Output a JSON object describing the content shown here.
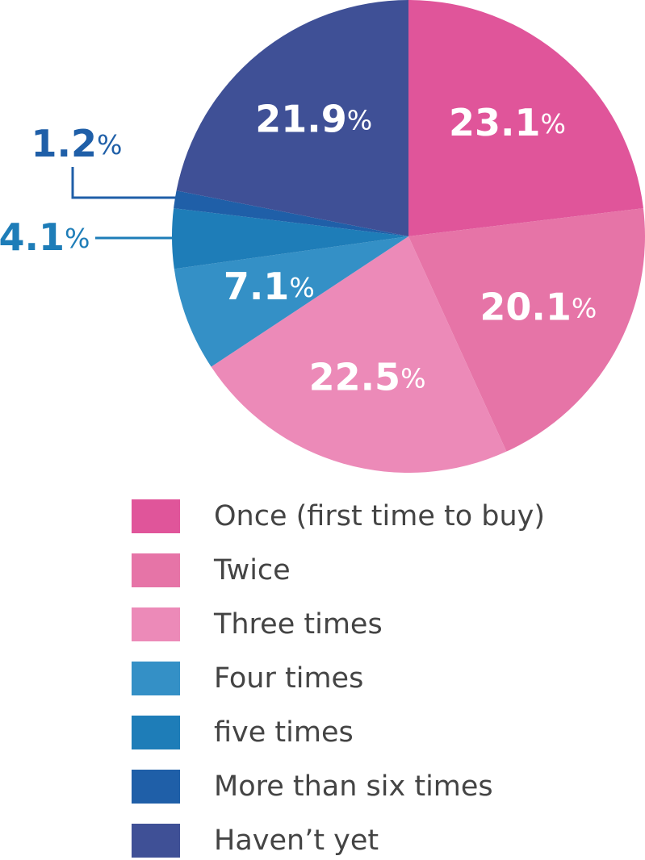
{
  "chart_data": {
    "type": "pie",
    "categories": [
      "Once (first time to buy)",
      "Twice",
      "Three times",
      "Four times",
      "five times",
      "More than six times",
      "Haven’t yet"
    ],
    "values": [
      23.1,
      20.1,
      22.5,
      7.1,
      4.1,
      1.2,
      21.9
    ],
    "value_labels": [
      "23.1%",
      "20.1%",
      "22.5%",
      "7.1%",
      "4.1%",
      "1.2%",
      "21.9%"
    ],
    "colors": [
      "#e0559a",
      "#e674a7",
      "#ec8ab8",
      "#3490c6",
      "#1e7db8",
      "#1f5fa8",
      "#3f5096"
    ]
  }
}
